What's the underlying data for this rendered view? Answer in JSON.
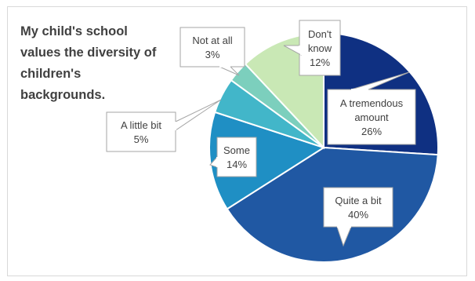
{
  "chart_data": {
    "type": "pie",
    "title": "My child's school values the diversity of children's backgrounds.",
    "slices": [
      {
        "label": "A tremendous amount",
        "value": 26,
        "value_label": "26%",
        "color": "#0f3082"
      },
      {
        "label": "Quite a bit",
        "value": 40,
        "value_label": "40%",
        "color": "#2058a3"
      },
      {
        "label": "Some",
        "value": 14,
        "value_label": "14%",
        "color": "#1f8fc4"
      },
      {
        "label": "A little bit",
        "value": 5,
        "value_label": "5%",
        "color": "#42b6c9"
      },
      {
        "label": "Not at all",
        "value": 3,
        "value_label": "3%",
        "color": "#7ccfbd"
      },
      {
        "label": "Don't know",
        "value": 12,
        "value_label": "12%",
        "color": "#c9e8b5"
      }
    ],
    "label_lines": {
      "A tremendous amount": [
        "A tremendous",
        "amount",
        "26%"
      ],
      "Quite a bit": [
        "Quite a bit",
        "40%"
      ],
      "Some": [
        "Some",
        "14%"
      ],
      "A little bit": [
        "A little bit",
        "5%"
      ],
      "Not at all": [
        "Not at all",
        "3%"
      ],
      "Don't know": [
        "Don't",
        "know",
        "12%"
      ]
    },
    "start_angle_deg": 0,
    "direction": "clockwise",
    "legend": "none"
  }
}
